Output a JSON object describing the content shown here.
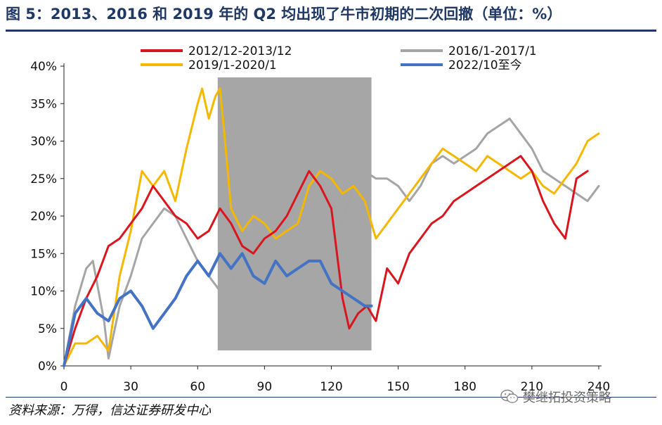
{
  "header": {
    "title": "图 5：2013、2016 和 2019 年的 Q2 均出现了牛市初期的二次回撤（单位：%）"
  },
  "footer": {
    "source": "资料来源：万得，信达证券研发中心",
    "watermark": "樊继拓投资策略",
    "watermark_icon": "wechat-icon"
  },
  "chart_data": {
    "type": "line",
    "x_ticks": [
      0,
      30,
      60,
      90,
      120,
      150,
      180,
      210,
      240
    ],
    "y_ticks": [
      "0%",
      "5%",
      "10%",
      "15%",
      "20%",
      "25%",
      "30%",
      "35%",
      "40%"
    ],
    "xlim": [
      0,
      240
    ],
    "ylim": [
      0,
      40
    ],
    "grid": false,
    "legend_position": "top",
    "shaded_region": {
      "x_start": 69,
      "x_end": 138,
      "color": "#a6a6a6"
    },
    "series": [
      {
        "name": "2012/12-2013/12",
        "color": "#d9151e",
        "x": [
          0,
          5,
          10,
          15,
          20,
          25,
          30,
          35,
          40,
          45,
          50,
          55,
          60,
          65,
          70,
          75,
          80,
          85,
          90,
          95,
          100,
          105,
          110,
          115,
          120,
          125,
          128,
          132,
          136,
          140,
          145,
          150,
          155,
          160,
          165,
          170,
          175,
          180,
          185,
          190,
          195,
          200,
          205,
          210,
          215,
          220,
          225,
          230,
          235
        ],
        "y": [
          0,
          5,
          9,
          12,
          16,
          17,
          19,
          21,
          24,
          22,
          20,
          19,
          17,
          18,
          21,
          19,
          16,
          15,
          17,
          18,
          20,
          23,
          26,
          24,
          21,
          9,
          5,
          7,
          8,
          6,
          13,
          11,
          15,
          17,
          19,
          20,
          22,
          23,
          24,
          25,
          26,
          27,
          28,
          26,
          22,
          19,
          17,
          25,
          26
        ]
      },
      {
        "name": "2016/1-2017/1",
        "color": "#a5a5a5",
        "x": [
          0,
          5,
          10,
          13,
          18,
          20,
          25,
          30,
          35,
          40,
          45,
          50,
          55,
          60,
          65,
          70,
          75,
          80,
          85,
          90,
          95,
          100,
          105,
          110,
          115,
          120,
          125,
          130,
          135,
          140,
          145,
          150,
          155,
          160,
          165,
          170,
          175,
          180,
          185,
          190,
          195,
          200,
          205,
          210,
          215,
          220,
          225,
          230,
          235,
          240
        ],
        "y": [
          0,
          8,
          13,
          14,
          6,
          1,
          8,
          12,
          17,
          19,
          21,
          20,
          17,
          14,
          12,
          10,
          11,
          14,
          15,
          16,
          17,
          19,
          22,
          24,
          25,
          22,
          19,
          24,
          26,
          25,
          25,
          24,
          22,
          24,
          27,
          28,
          27,
          28,
          29,
          31,
          32,
          33,
          31,
          29,
          26,
          25,
          24,
          23,
          22,
          24
        ]
      },
      {
        "name": "2019/1-2020/1",
        "color": "#f5b800",
        "x": [
          0,
          5,
          10,
          15,
          20,
          25,
          30,
          35,
          40,
          45,
          50,
          55,
          60,
          62,
          65,
          68,
          70,
          72,
          75,
          80,
          85,
          90,
          95,
          100,
          105,
          110,
          115,
          120,
          125,
          130,
          135,
          140,
          145,
          150,
          155,
          160,
          165,
          170,
          175,
          180,
          185,
          190,
          195,
          200,
          205,
          210,
          215,
          220,
          225,
          230,
          235,
          240
        ],
        "y": [
          0,
          3,
          3,
          4,
          2,
          12,
          18,
          26,
          24,
          26,
          22,
          29,
          35,
          37,
          33,
          36,
          37,
          31,
          21,
          18,
          20,
          19,
          17,
          18,
          19,
          24,
          26,
          25,
          23,
          24,
          22,
          17,
          19,
          21,
          23,
          25,
          27,
          29,
          28,
          27,
          26,
          28,
          27,
          26,
          25,
          26,
          24,
          23,
          25,
          27,
          30,
          31
        ]
      },
      {
        "name": "2022/10至今",
        "color": "#4472c4",
        "x": [
          0,
          5,
          10,
          15,
          20,
          25,
          30,
          35,
          40,
          45,
          50,
          55,
          60,
          65,
          70,
          75,
          80,
          85,
          90,
          95,
          100,
          105,
          110,
          115,
          120,
          125,
          130,
          135,
          138
        ],
        "y": [
          0,
          7,
          9,
          7,
          6,
          9,
          10,
          8,
          5,
          7,
          9,
          12,
          14,
          12,
          15,
          13,
          15,
          12,
          11,
          14,
          12,
          13,
          14,
          14,
          11,
          10,
          9,
          8,
          8
        ]
      }
    ]
  }
}
